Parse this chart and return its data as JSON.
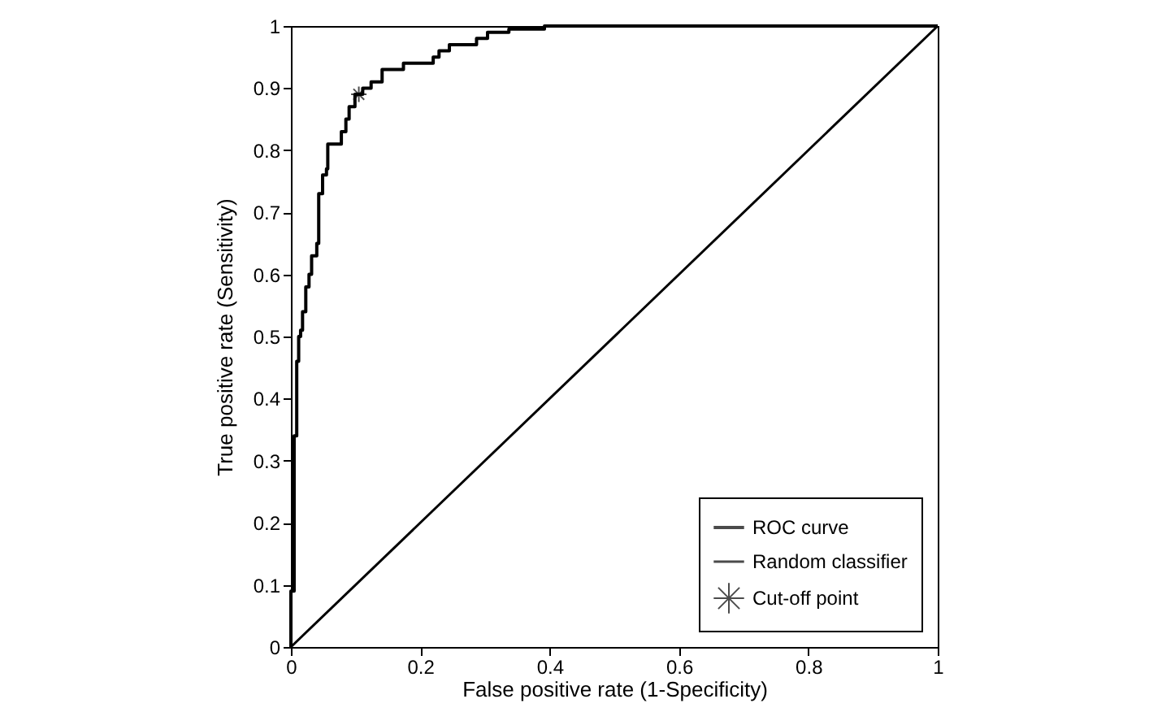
{
  "chart_data": {
    "type": "line",
    "xlabel": "False positive rate (1-Specificity)",
    "ylabel": "True positive rate (Sensitivity)",
    "xlim": [
      0,
      1
    ],
    "ylim": [
      0,
      1
    ],
    "xticks": [
      0,
      0.2,
      0.4,
      0.6,
      0.8,
      1
    ],
    "yticks": [
      0,
      0.1,
      0.2,
      0.3,
      0.4,
      0.5,
      0.6,
      0.7,
      0.8,
      0.9,
      1
    ],
    "grid": false,
    "legend": "bottom right",
    "series": [
      {
        "name": "ROC curve",
        "type": "line",
        "color": "#000000",
        "x": [
          0,
          0,
          0.005,
          0.005,
          0.009,
          0.009,
          0.012,
          0.012,
          0.015,
          0.015,
          0.018,
          0.018,
          0.023,
          0.023,
          0.028,
          0.028,
          0.032,
          0.032,
          0.04,
          0.04,
          0.043,
          0.043,
          0.049,
          0.049,
          0.055,
          0.055,
          0.057,
          0.057,
          0.065,
          0.065,
          0.078,
          0.078,
          0.085,
          0.085,
          0.09,
          0.09,
          0.099,
          0.099,
          0.111,
          0.111,
          0.124,
          0.124,
          0.141,
          0.141,
          0.158,
          0.158,
          0.174,
          0.174,
          0.22,
          0.22,
          0.229,
          0.229,
          0.245,
          0.245,
          0.287,
          0.287,
          0.304,
          0.304,
          0.337,
          0.337,
          0.392,
          0.392,
          0.446,
          0.446,
          1
        ],
        "values": [
          0,
          0.09,
          0.09,
          0.34,
          0.34,
          0.46,
          0.46,
          0.5,
          0.5,
          0.51,
          0.51,
          0.54,
          0.54,
          0.58,
          0.58,
          0.6,
          0.6,
          0.63,
          0.63,
          0.65,
          0.65,
          0.73,
          0.73,
          0.76,
          0.76,
          0.77,
          0.77,
          0.81,
          0.81,
          0.81,
          0.81,
          0.83,
          0.83,
          0.85,
          0.85,
          0.87,
          0.87,
          0.89,
          0.89,
          0.9,
          0.9,
          0.91,
          0.91,
          0.93,
          0.93,
          0.93,
          0.93,
          0.94,
          0.94,
          0.95,
          0.95,
          0.96,
          0.96,
          0.97,
          0.97,
          0.98,
          0.98,
          0.99,
          0.99,
          0.995,
          0.995,
          1,
          1,
          1,
          1
        ]
      },
      {
        "name": "Random classifier",
        "type": "line",
        "color": "#000000",
        "x": [
          0,
          1
        ],
        "values": [
          0,
          1
        ]
      },
      {
        "name": "Cut-off point",
        "type": "scatter",
        "marker": "cross",
        "color": "#000000",
        "x": [
          0.105
        ],
        "values": [
          0.89
        ]
      }
    ]
  }
}
